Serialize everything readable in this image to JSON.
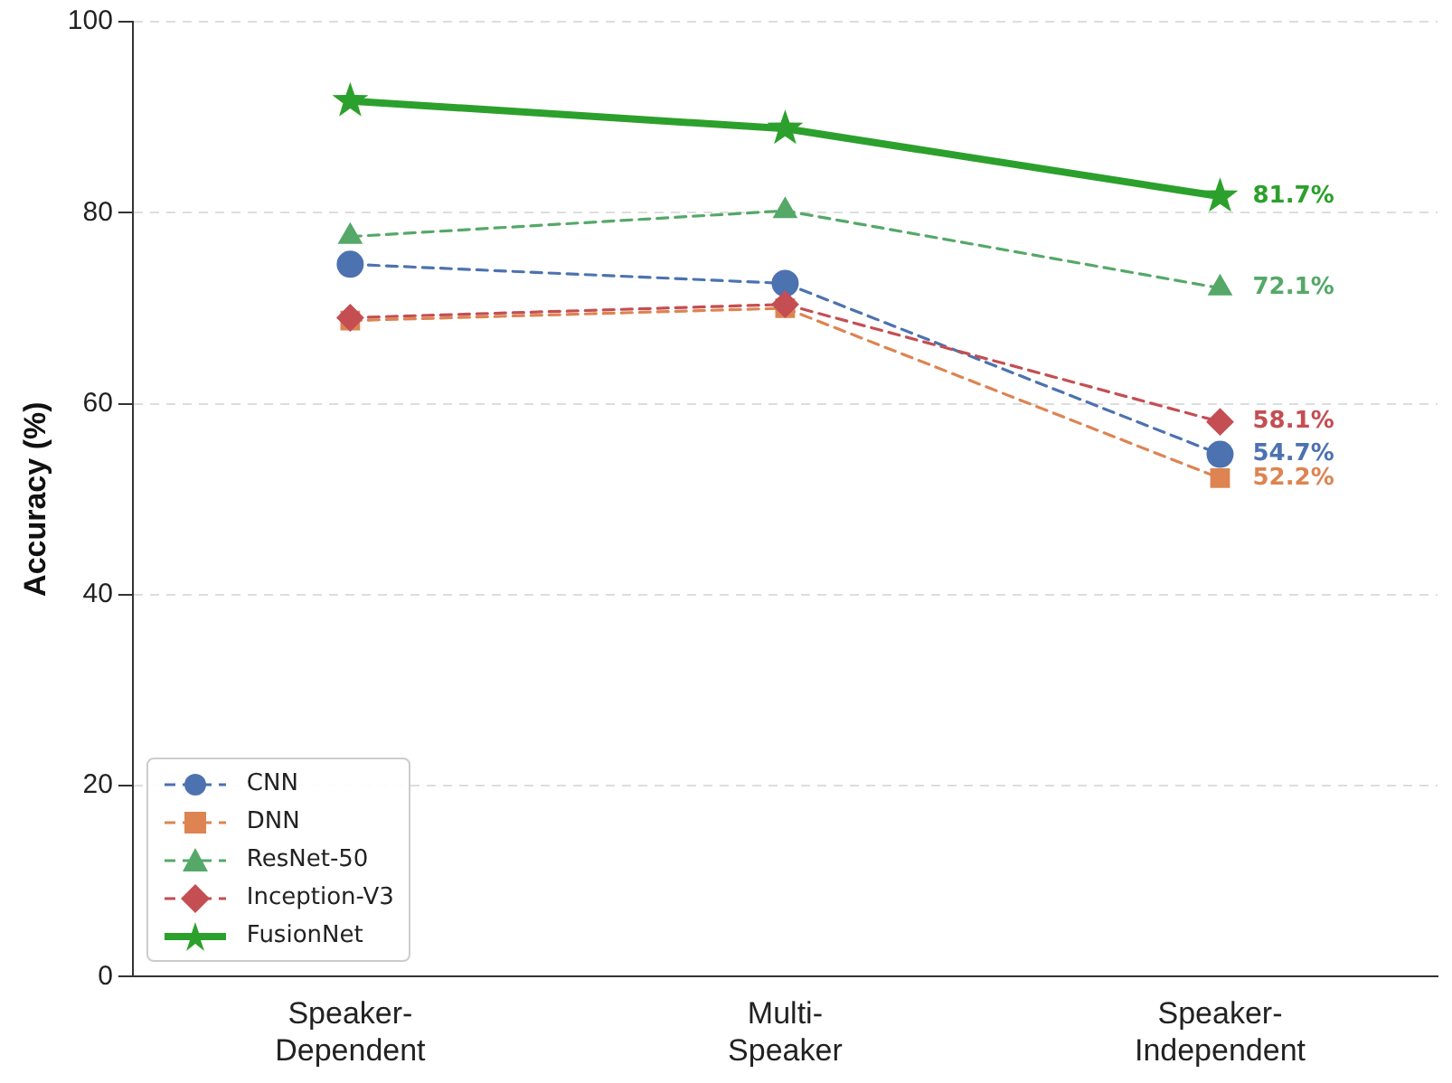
{
  "chart_data": {
    "type": "line",
    "ylabel": "Accuracy (%)",
    "categories": [
      "Speaker-\nDependent",
      "Multi-\nSpeaker",
      "Speaker-\nIndependent"
    ],
    "ylim": [
      0,
      100
    ],
    "yticks": [
      0,
      20,
      40,
      60,
      80,
      100
    ],
    "grid": "y",
    "legend": "bottom left",
    "series": [
      {
        "name": "CNN",
        "color": "#4c72b0",
        "marker": "circle",
        "line_style": "dashed",
        "values": [
          74.6,
          72.6,
          54.7
        ],
        "value_labels": [
          null,
          null,
          "54.7%"
        ]
      },
      {
        "name": "DNN",
        "color": "#dd8452",
        "marker": "square",
        "line_style": "dashed",
        "values": [
          68.7,
          70.0,
          52.2
        ],
        "value_labels": [
          null,
          null,
          "52.2%"
        ]
      },
      {
        "name": "ResNet-50",
        "color": "#55a868",
        "marker": "triangle",
        "line_style": "dashed",
        "values": [
          77.5,
          80.2,
          72.1
        ],
        "value_labels": [
          null,
          null,
          "72.1%"
        ]
      },
      {
        "name": "Inception-V3",
        "color": "#c44e52",
        "marker": "diamond",
        "line_style": "dashed",
        "values": [
          69.0,
          70.4,
          58.1
        ],
        "value_labels": [
          null,
          null,
          "58.1%"
        ]
      },
      {
        "name": "FusionNet",
        "color": "#2ca02c",
        "marker": "star",
        "line_style": "solid",
        "values": [
          91.7,
          88.8,
          81.7
        ],
        "value_labels": [
          null,
          null,
          "81.7%"
        ]
      }
    ]
  }
}
